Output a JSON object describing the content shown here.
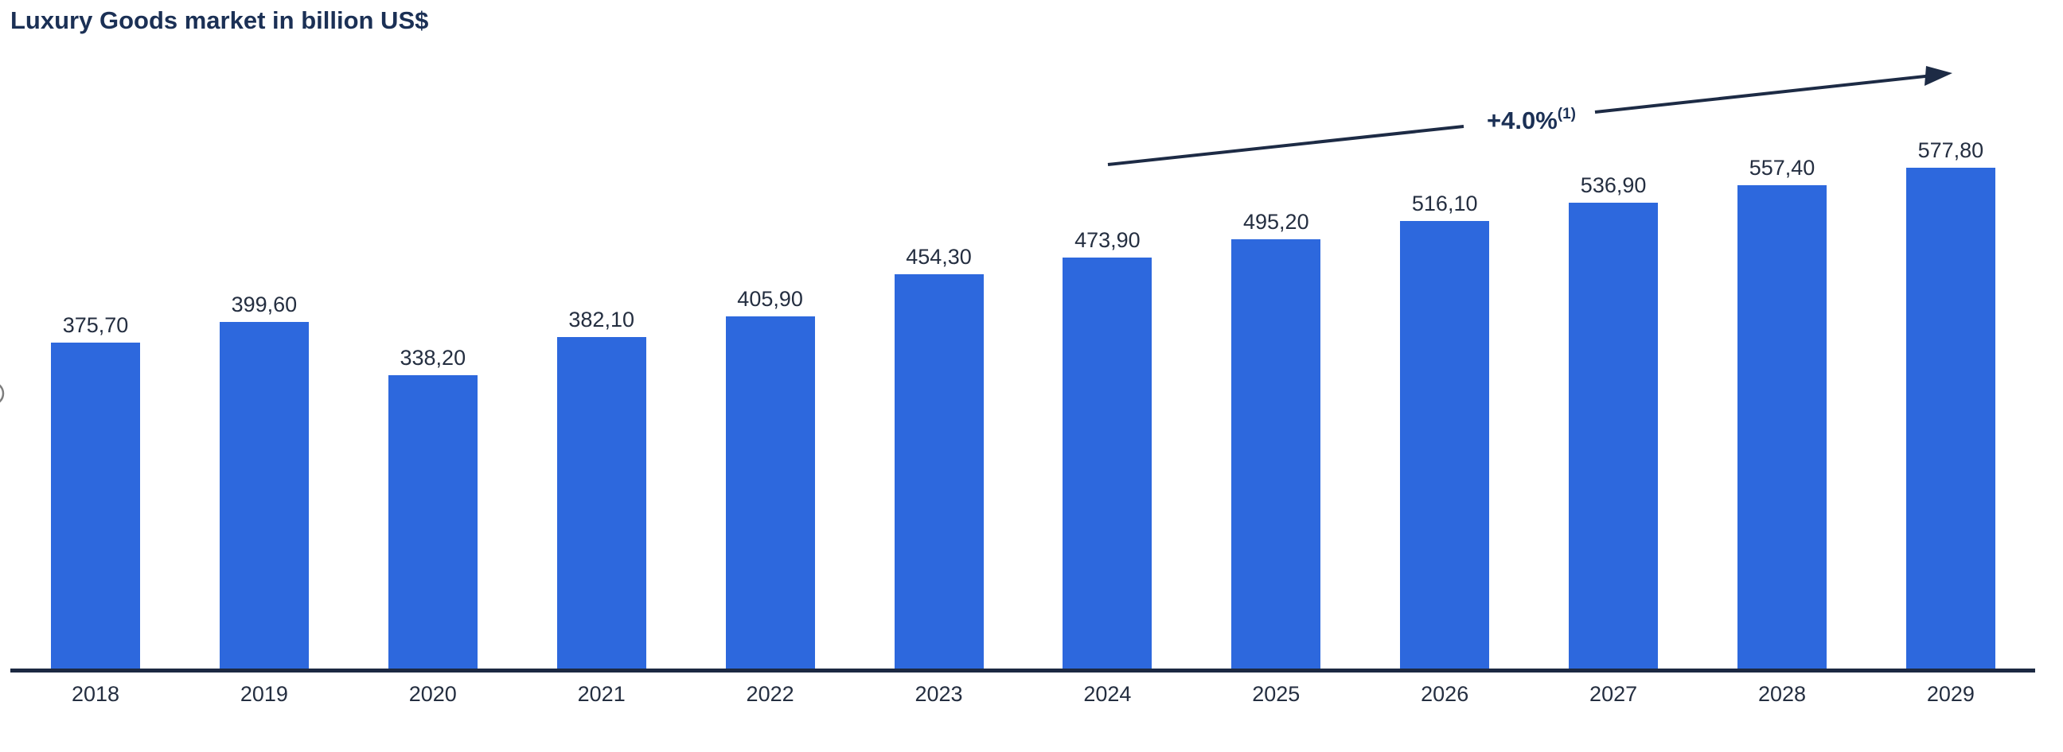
{
  "title": "Luxury Goods market in billion US$",
  "annotation": {
    "text": "+4.0%",
    "superscript": "(1)"
  },
  "colors": {
    "bar": "#2d68dd",
    "axis": "#1c2942",
    "title": "#1b3055",
    "label": "#242e40",
    "annotation": "#1b3055"
  },
  "chart_data": {
    "type": "bar",
    "title": "Luxury Goods market in billion US$",
    "categories": [
      "2018",
      "2019",
      "2020",
      "2021",
      "2022",
      "2023",
      "2024",
      "2025",
      "2026",
      "2027",
      "2028",
      "2029"
    ],
    "values": [
      375.7,
      399.6,
      338.2,
      382.1,
      405.9,
      454.3,
      473.9,
      495.2,
      516.1,
      536.9,
      557.4,
      577.8
    ],
    "value_labels": [
      "375,70",
      "399,60",
      "338,20",
      "382,10",
      "405,90",
      "454,30",
      "473,90",
      "495,20",
      "516,10",
      "536,90",
      "557,40",
      "577,80"
    ],
    "xlabel": "",
    "ylabel": "",
    "ylim": [
      0,
      600
    ],
    "grid": false,
    "legend": false,
    "annotations": [
      {
        "type": "trend-arrow",
        "label": "+4.0%(1)",
        "from_category": "2024",
        "to_category": "2029"
      }
    ]
  }
}
